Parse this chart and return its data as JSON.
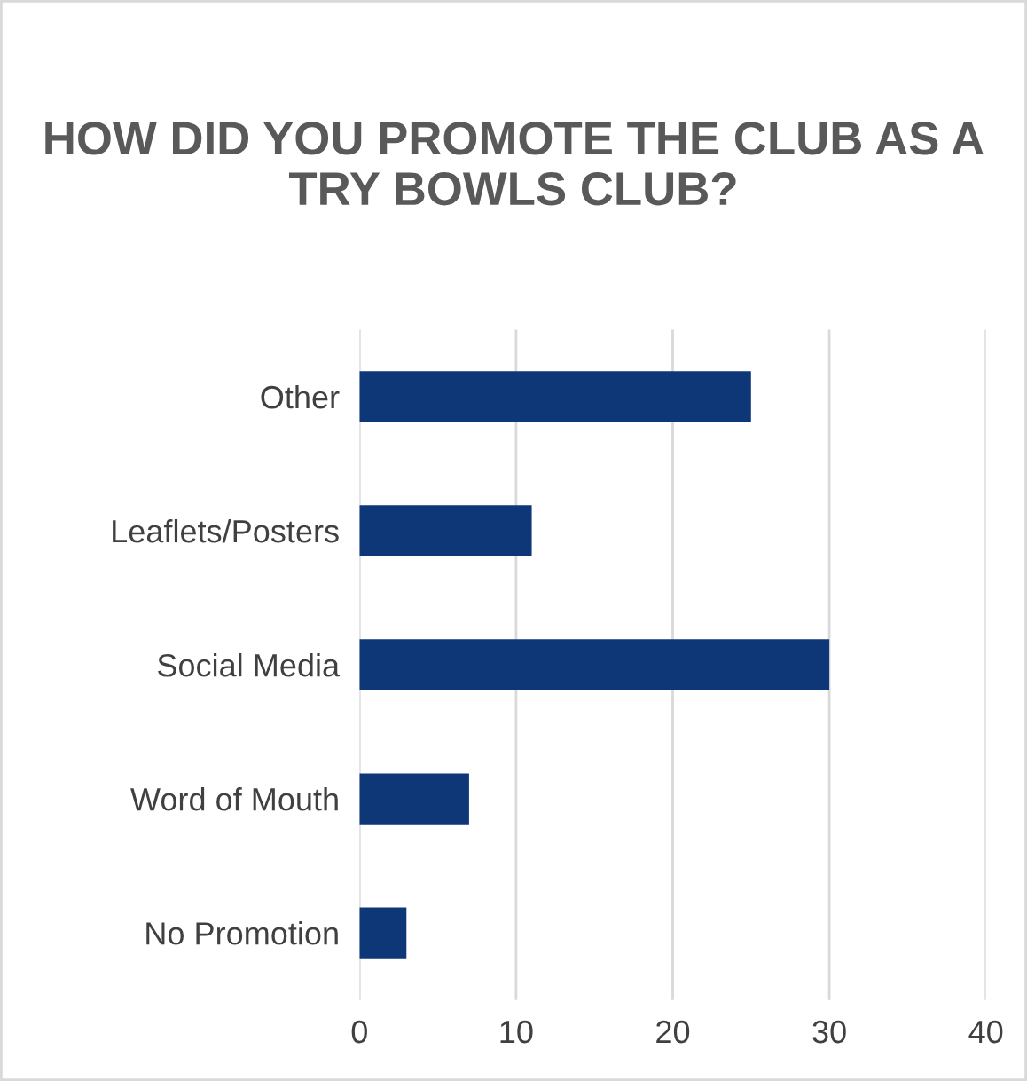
{
  "chart_data": {
    "type": "bar",
    "orientation": "horizontal",
    "title": "HOW DID YOU PROMOTE THE CLUB AS A TRY BOWLS CLUB?",
    "categories": [
      "Other",
      "Leaflets/Posters",
      "Social Media",
      "Word of Mouth",
      "No Promotion"
    ],
    "values": [
      25,
      11,
      30,
      7,
      3
    ],
    "color": "#0e3778",
    "xlim": [
      0,
      40
    ],
    "xticks": [
      0,
      10,
      20,
      30,
      40
    ],
    "grid": "x",
    "legend": false
  }
}
